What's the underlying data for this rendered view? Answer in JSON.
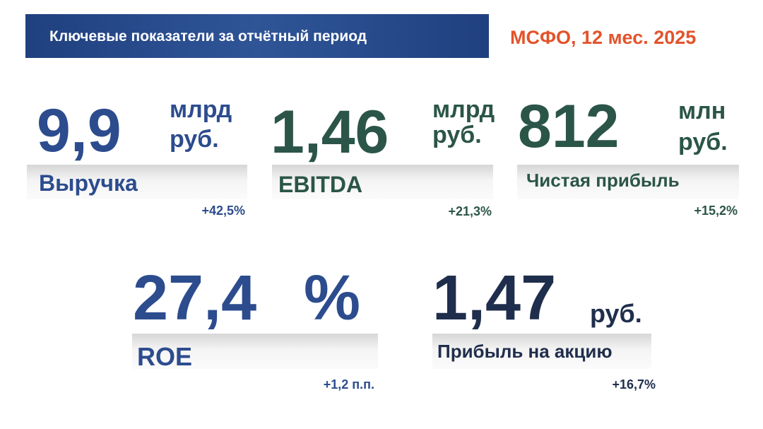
{
  "header": {
    "title": "Ключевые показатели за отчётный период",
    "subtitle": "МСФО, 12 мес.  2025"
  },
  "cards": [
    {
      "value": "9,9",
      "unit": [
        "млрд",
        "руб."
      ],
      "label": "Выручка",
      "change": "+42,5%"
    },
    {
      "value": "1,46",
      "unit": [
        "млрд",
        "руб."
      ],
      "label": "EBITDA",
      "change": "+21,3%"
    },
    {
      "value": "812",
      "unit": [
        "млн",
        "руб."
      ],
      "label": "Чистая прибыль",
      "change": "+15,2%"
    },
    {
      "value": "27,4",
      "unit": [
        "%"
      ],
      "label": "ROE",
      "change": "+1,2 п.п."
    },
    {
      "value": "1,47",
      "unit": [
        "руб."
      ],
      "label": "Прибыль на акцию",
      "change": "+16,7%"
    }
  ]
}
